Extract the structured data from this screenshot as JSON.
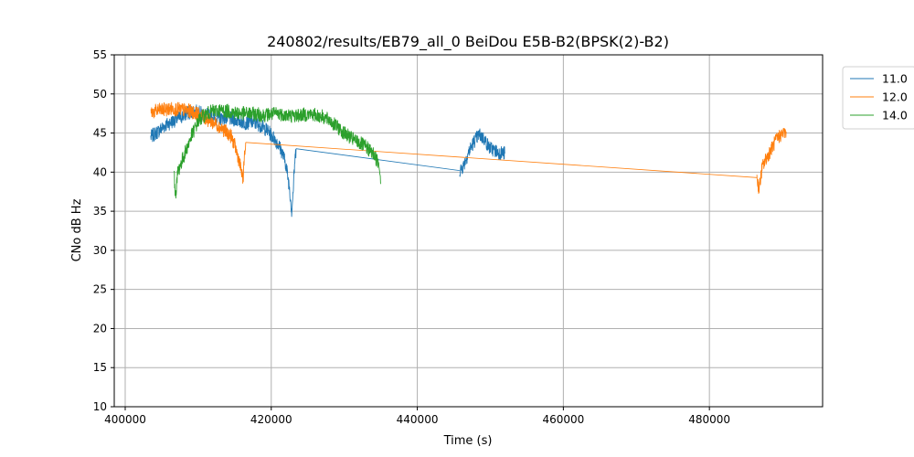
{
  "chart_data": {
    "type": "line",
    "title": "240802/results/EB79_all_0 BeiDou E5B-B2(BPSK(2)-B2)",
    "xlabel": "Time (s)",
    "ylabel": "CNo dB Hz",
    "xlim": [
      398500,
      495500
    ],
    "ylim": [
      10,
      55
    ],
    "xticks": [
      400000,
      420000,
      440000,
      460000,
      480000
    ],
    "xtick_labels": [
      "400000",
      "420000",
      "440000",
      "460000",
      "480000"
    ],
    "yticks": [
      10,
      15,
      20,
      25,
      30,
      35,
      40,
      45,
      50,
      55
    ],
    "ytick_labels": [
      "10",
      "15",
      "20",
      "25",
      "30",
      "35",
      "40",
      "45",
      "50",
      "55"
    ],
    "grid": true,
    "legend_position": "outside-top-right",
    "series": [
      {
        "name": "11.0",
        "color": "#1f77b4",
        "segments": [
          [
            [
              403500,
              44.5
            ],
            [
              404500,
              45.2
            ],
            [
              405500,
              46
            ],
            [
              406500,
              46.5
            ],
            [
              407500,
              47
            ],
            [
              408500,
              47.5
            ],
            [
              409500,
              47.8
            ],
            [
              410500,
              47.5
            ],
            [
              411500,
              47.2
            ],
            [
              412500,
              46.8
            ],
            [
              413500,
              47
            ],
            [
              414500,
              46.8
            ],
            [
              415500,
              46.6
            ],
            [
              416500,
              46.3
            ],
            [
              417500,
              46.4
            ],
            [
              418500,
              46
            ],
            [
              419500,
              45.3
            ],
            [
              420500,
              44.2
            ],
            [
              421000,
              43.5
            ],
            [
              421500,
              42.5
            ],
            [
              422000,
              41
            ],
            [
              422500,
              38
            ],
            [
              422800,
              35
            ],
            [
              423000,
              37.5
            ],
            [
              423200,
              41
            ],
            [
              423400,
              43
            ]
          ],
          [
            [
              423400,
              43
            ],
            [
              445800,
              40.2
            ]
          ],
          [
            [
              445800,
              40.2
            ],
            [
              446300,
              40.8
            ],
            [
              447000,
              42.5
            ],
            [
              447800,
              44
            ],
            [
              448500,
              44.8
            ],
            [
              449200,
              44.2
            ],
            [
              449800,
              43.2
            ],
            [
              450500,
              42.8
            ],
            [
              451200,
              42.5
            ],
            [
              452000,
              42.4
            ]
          ]
        ]
      },
      {
        "name": "12.0",
        "color": "#ff7f0e",
        "segments": [
          [
            [
              403500,
              47.6
            ],
            [
              404500,
              47.9
            ],
            [
              405500,
              48
            ],
            [
              406500,
              48.1
            ],
            [
              407500,
              48
            ],
            [
              408500,
              47.9
            ],
            [
              409500,
              47.6
            ],
            [
              410500,
              47.2
            ],
            [
              411500,
              46.6
            ],
            [
              412500,
              46.1
            ],
            [
              413500,
              45.4
            ],
            [
              414500,
              44.6
            ],
            [
              415000,
              43.4
            ],
            [
              415500,
              41.8
            ],
            [
              415900,
              40.2
            ],
            [
              416100,
              38.8
            ],
            [
              416300,
              41.5
            ],
            [
              416500,
              43.8
            ]
          ],
          [
            [
              416500,
              43.8
            ],
            [
              486500,
              39.3
            ]
          ],
          [
            [
              486500,
              39.3
            ],
            [
              486800,
              37.8
            ],
            [
              487200,
              40.5
            ],
            [
              487800,
              41.8
            ],
            [
              488500,
              43
            ],
            [
              489200,
              44.2
            ],
            [
              489800,
              44.8
            ],
            [
              490500,
              45.2
            ]
          ]
        ]
      },
      {
        "name": "14.0",
        "color": "#2ca02c",
        "segments": [
          [
            [
              406700,
              39.5
            ],
            [
              406900,
              37
            ],
            [
              407200,
              40
            ],
            [
              407600,
              41
            ],
            [
              408000,
              42
            ],
            [
              408500,
              43.2
            ],
            [
              409000,
              44.5
            ],
            [
              409500,
              45.5
            ],
            [
              410000,
              46.5
            ],
            [
              410500,
              47
            ],
            [
              411000,
              47.4
            ],
            [
              412000,
              47.8
            ],
            [
              413000,
              47.9
            ],
            [
              414000,
              47.8
            ],
            [
              415000,
              47.6
            ],
            [
              416000,
              47.5
            ],
            [
              417000,
              47.5
            ],
            [
              418000,
              47.4
            ],
            [
              419000,
              47.3
            ],
            [
              420000,
              47.4
            ],
            [
              421000,
              47.5
            ],
            [
              422000,
              47.3
            ],
            [
              423000,
              47.2
            ],
            [
              424000,
              47.3
            ],
            [
              425000,
              47.4
            ],
            [
              426000,
              47.3
            ],
            [
              427000,
              47.1
            ],
            [
              428000,
              46.6
            ],
            [
              429000,
              45.8
            ],
            [
              430000,
              45
            ],
            [
              431000,
              44.3
            ],
            [
              432000,
              43.8
            ],
            [
              433000,
              43.2
            ],
            [
              434000,
              42.3
            ],
            [
              434800,
              41
            ],
            [
              435000,
              38.5
            ]
          ]
        ]
      }
    ]
  }
}
